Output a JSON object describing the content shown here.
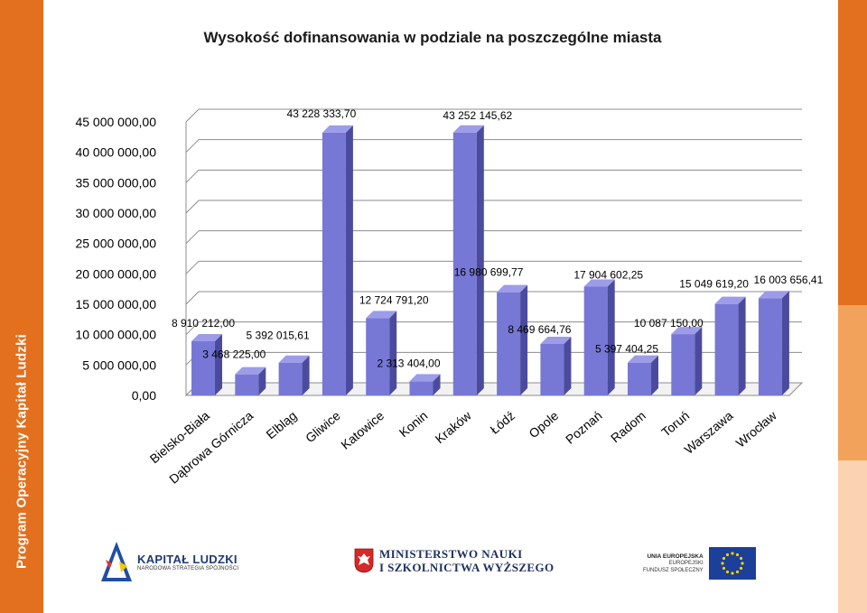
{
  "sidebar": {
    "text": "Program Operacyjny Kapitał Ludzki"
  },
  "colors": {
    "left_band": "#e2701f",
    "right_band": [
      "#e2701f",
      "#f3a25c",
      "#fbd3b2"
    ],
    "bar_front": "#7777d6",
    "bar_side": "#4b4b9e",
    "bar_top": "#9c9ce8",
    "grid": "#8c8c8c"
  },
  "chart_data": {
    "type": "bar",
    "title": "Wysokość dofinansowania w podziale na poszczególne miasta",
    "categories": [
      "Bielsko-Biała",
      "Dąbrowa Górnicza",
      "Elbląg",
      "Gliwice",
      "Katowice",
      "Konin",
      "Kraków",
      "Łódź",
      "Opole",
      "Poznań",
      "Radom",
      "Toruń",
      "Warszawa",
      "Wrocław"
    ],
    "values": [
      8910212.0,
      3468225.0,
      5392015.61,
      43228333.7,
      12724791.2,
      2313404.0,
      43252145.62,
      16980699.77,
      8469664.76,
      17904602.25,
      5397404.25,
      10087150.0,
      15049619.2,
      16003656.41
    ],
    "value_labels": [
      "8 910 212,00",
      "3 468 225,00",
      "5 392 015,61",
      "43 228 333,70",
      "12 724 791,20",
      "2 313 404,00",
      "43 252 145,62",
      "16 980 699,77",
      "8 469 664,76",
      "17 904 602,25",
      "5 397 404,25",
      "10 087 150,00",
      "15 049 619,20",
      "16 003 656,41"
    ],
    "yticks": [
      0,
      5000000,
      10000000,
      15000000,
      20000000,
      25000000,
      30000000,
      35000000,
      40000000,
      45000000
    ],
    "ytick_labels": [
      "0,00",
      "5 000 000,00",
      "10 000 000,00",
      "15 000 000,00",
      "20 000 000,00",
      "25 000 000,00",
      "30 000 000,00",
      "35 000 000,00",
      "40 000 000,00",
      "45 000 000,00"
    ],
    "ylim": [
      0,
      45000000
    ],
    "grid": true,
    "legend": "none",
    "style": "3d-column"
  },
  "logos": {
    "kapital_ludzki": {
      "main": "KAPITAŁ LUDZKI",
      "sub": "NARODOWA STRATEGIA SPÓJNOŚCI"
    },
    "ministerstwo": {
      "line1": "MINISTERSTWO NAUKI",
      "line2": "I SZKOLNICTWA WYŻSZEGO"
    },
    "ue": {
      "main": "UNIA EUROPEJSKA",
      "sub1": "EUROPEJSKI",
      "sub2": "FUNDUSZ SPOŁECZNY"
    }
  }
}
